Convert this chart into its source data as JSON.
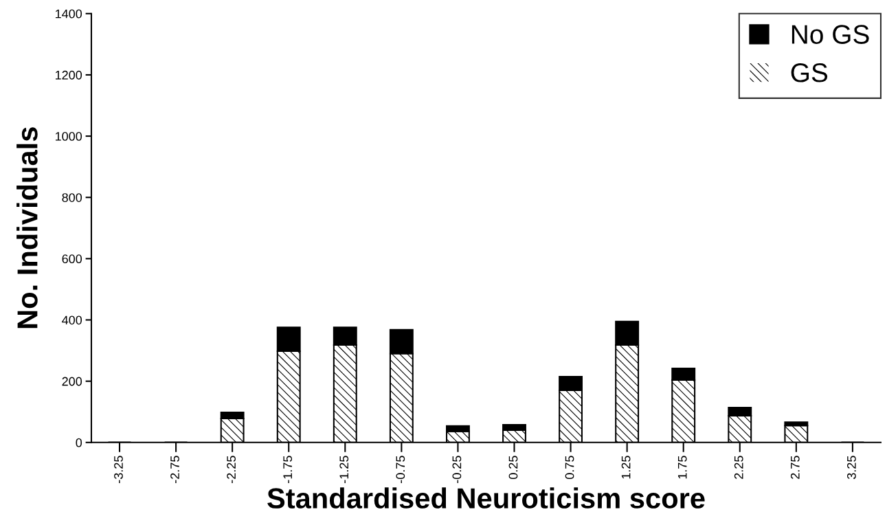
{
  "chart_data": {
    "type": "bar",
    "stacked": true,
    "xlabel": "Standardised Neuroticism score",
    "ylabel": "No. Individuals",
    "categories": [
      "-3.25",
      "-2.75",
      "-2.25",
      "-1.75",
      "-1.25",
      "-0.75",
      "-0.25",
      "0.25",
      "0.75",
      "1.25",
      "1.75",
      "2.25",
      "2.75",
      "3.25"
    ],
    "series": [
      {
        "name": "GS",
        "color": "#ffffff",
        "values": [
          0,
          0,
          78,
          298,
          318,
          290,
          36,
          40,
          170,
          318,
          204,
          87,
          55,
          0
        ]
      },
      {
        "name": "No GS",
        "color": "#000000",
        "values": [
          0,
          0,
          20,
          78,
          58,
          78,
          18,
          18,
          45,
          77,
          38,
          27,
          11,
          0
        ]
      }
    ],
    "ylim": [
      0,
      1400
    ],
    "yticks": [
      0,
      200,
      400,
      600,
      800,
      1000,
      1200,
      1400
    ],
    "grid": false,
    "legend": "top right"
  }
}
